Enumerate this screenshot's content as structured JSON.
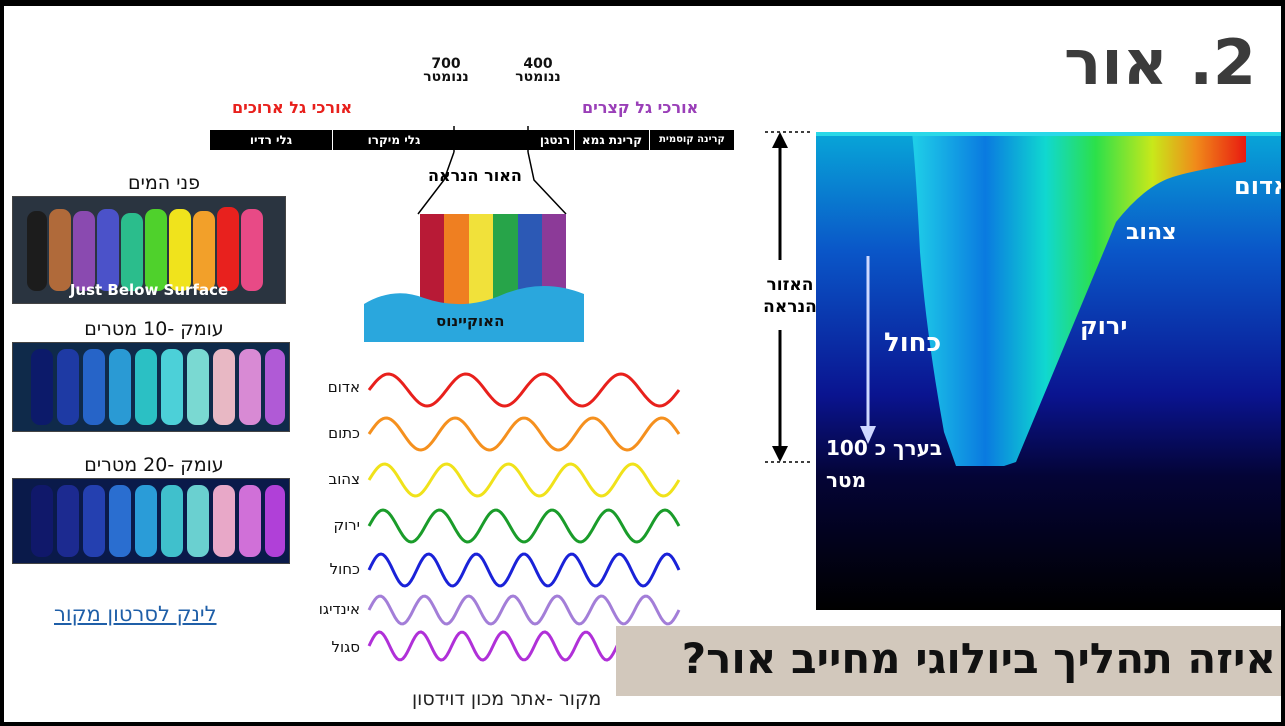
{
  "slide": {
    "title": "2. אור",
    "spectrum": {
      "nm_700_value": "700",
      "nm_700_unit": "ננומטר",
      "nm_400_value": "400",
      "nm_400_unit": "ננומטר",
      "long_waves": "אורכי גל ארוכים",
      "short_waves": "אורכי גל קצרים",
      "radio": "גלי רדיו",
      "micro": "גלי מיקרו",
      "xray": "רנטגן",
      "gamma": "קרינת גמא",
      "cosmic": "קרינה קוסמית",
      "visible_light": "האור הנראה",
      "ocean": "האוקיינוס"
    },
    "photos": [
      {
        "label": "פני המים",
        "caption": "Just Below Surface"
      },
      {
        "label": "עומק -10 מטרים",
        "caption": ""
      },
      {
        "label": "עומק -20 מטרים",
        "caption": ""
      }
    ],
    "waves": [
      {
        "label": "אדום",
        "color": "#e8201c",
        "cycles": 4
      },
      {
        "label": "כתום",
        "color": "#f5901e",
        "cycles": 4.5
      },
      {
        "label": "צהוב",
        "color": "#f0e21a",
        "cycles": 5
      },
      {
        "label": "ירוק",
        "color": "#1a9c2a",
        "cycles": 5.5
      },
      {
        "label": "כחול",
        "color": "#1a22d8",
        "cycles": 6.5
      },
      {
        "label": "אינדיגו",
        "color": "#a37ed8",
        "cycles": 7
      },
      {
        "label": "סגול",
        "color": "#b030d8",
        "cycles": 7.5
      }
    ],
    "link_text": "לינק לסרטון מקור",
    "credit": "מקור -אתר מכון דוידסון",
    "depth": {
      "red": "אדום",
      "yellow": "צהוב",
      "green": "ירוק",
      "blue": "כחול",
      "zone_line1": "האזור",
      "zone_line2": "הנראה",
      "approx": "בערך כ 100",
      "meter": "מטר"
    },
    "question": "איזה תהליך ביולוגי מחייב אור?"
  }
}
